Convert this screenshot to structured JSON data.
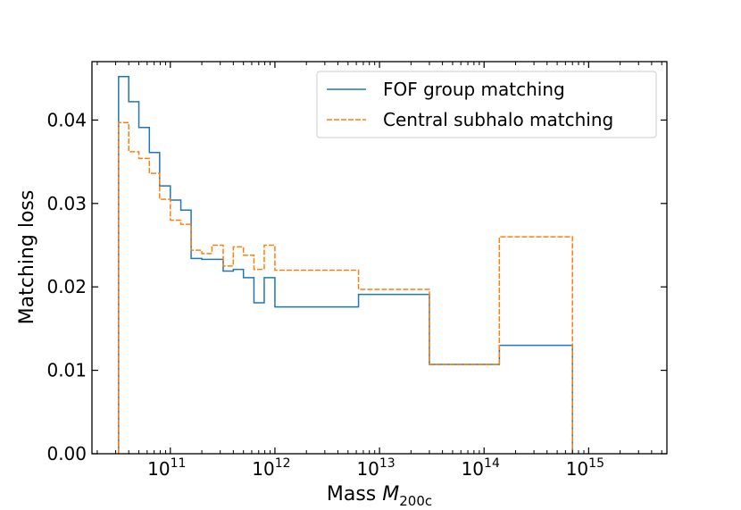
{
  "chart_data": {
    "type": "line",
    "drawstyle": "steps-post",
    "title": "",
    "xlabel": "Mass",
    "xlabel_math": "M",
    "xlabel_sub": "200c",
    "ylabel": "Matching loss",
    "xscale": "log",
    "xlim": [
      17800000000.0,
      5600000000000000.0
    ],
    "ylim": [
      0.0,
      0.047
    ],
    "yticks": [
      {
        "value": 0.0,
        "label": "0.00"
      },
      {
        "value": 0.01,
        "label": "0.01"
      },
      {
        "value": 0.02,
        "label": "0.02"
      },
      {
        "value": 0.03,
        "label": "0.03"
      },
      {
        "value": 0.04,
        "label": "0.04"
      }
    ],
    "xticks": [
      {
        "exp": 11,
        "base": "10",
        "sup": "11"
      },
      {
        "exp": 12,
        "base": "10",
        "sup": "12"
      },
      {
        "exp": 13,
        "base": "10",
        "sup": "13"
      },
      {
        "exp": 14,
        "base": "10",
        "sup": "14"
      },
      {
        "exp": 15,
        "base": "10",
        "sup": "15"
      }
    ],
    "legend": {
      "position": "upper right"
    },
    "series": [
      {
        "name": "FOF group matching",
        "color": "#1f77b4",
        "style": "solid",
        "edges": [
          32000000000.0,
          40000000000.0,
          50000000000.0,
          63000000000.0,
          79000000000.0,
          100000000000.0,
          126000000000.0,
          158000000000.0,
          200000000000.0,
          250000000000.0,
          320000000000.0,
          400000000000.0,
          500000000000.0,
          630000000000.0,
          790000000000.0,
          1000000000000.0,
          1260000000000.0,
          6300000000000.0,
          30000000000000.0,
          140000000000000.0,
          700000000000000.0
        ],
        "values": [
          0.0452,
          0.0422,
          0.0391,
          0.0361,
          0.0321,
          0.0304,
          0.0292,
          0.0234,
          0.0233,
          0.0233,
          0.0219,
          0.0221,
          0.0211,
          0.0181,
          0.0211,
          0.0176,
          0.0176,
          0.0191,
          0.0107,
          0.013
        ]
      },
      {
        "name": "Central subhalo matching",
        "color": "#ff7f0e",
        "style": "dashed",
        "edges": [
          32000000000.0,
          40000000000.0,
          50000000000.0,
          63000000000.0,
          79000000000.0,
          100000000000.0,
          126000000000.0,
          158000000000.0,
          200000000000.0,
          250000000000.0,
          320000000000.0,
          400000000000.0,
          500000000000.0,
          630000000000.0,
          790000000000.0,
          1000000000000.0,
          1260000000000.0,
          6300000000000.0,
          30000000000000.0,
          140000000000000.0,
          700000000000000.0
        ],
        "values": [
          0.0397,
          0.0362,
          0.0354,
          0.0336,
          0.0305,
          0.028,
          0.0275,
          0.0244,
          0.024,
          0.025,
          0.0225,
          0.0248,
          0.0238,
          0.0221,
          0.025,
          0.022,
          0.022,
          0.0197,
          0.0107,
          0.026
        ]
      }
    ]
  }
}
